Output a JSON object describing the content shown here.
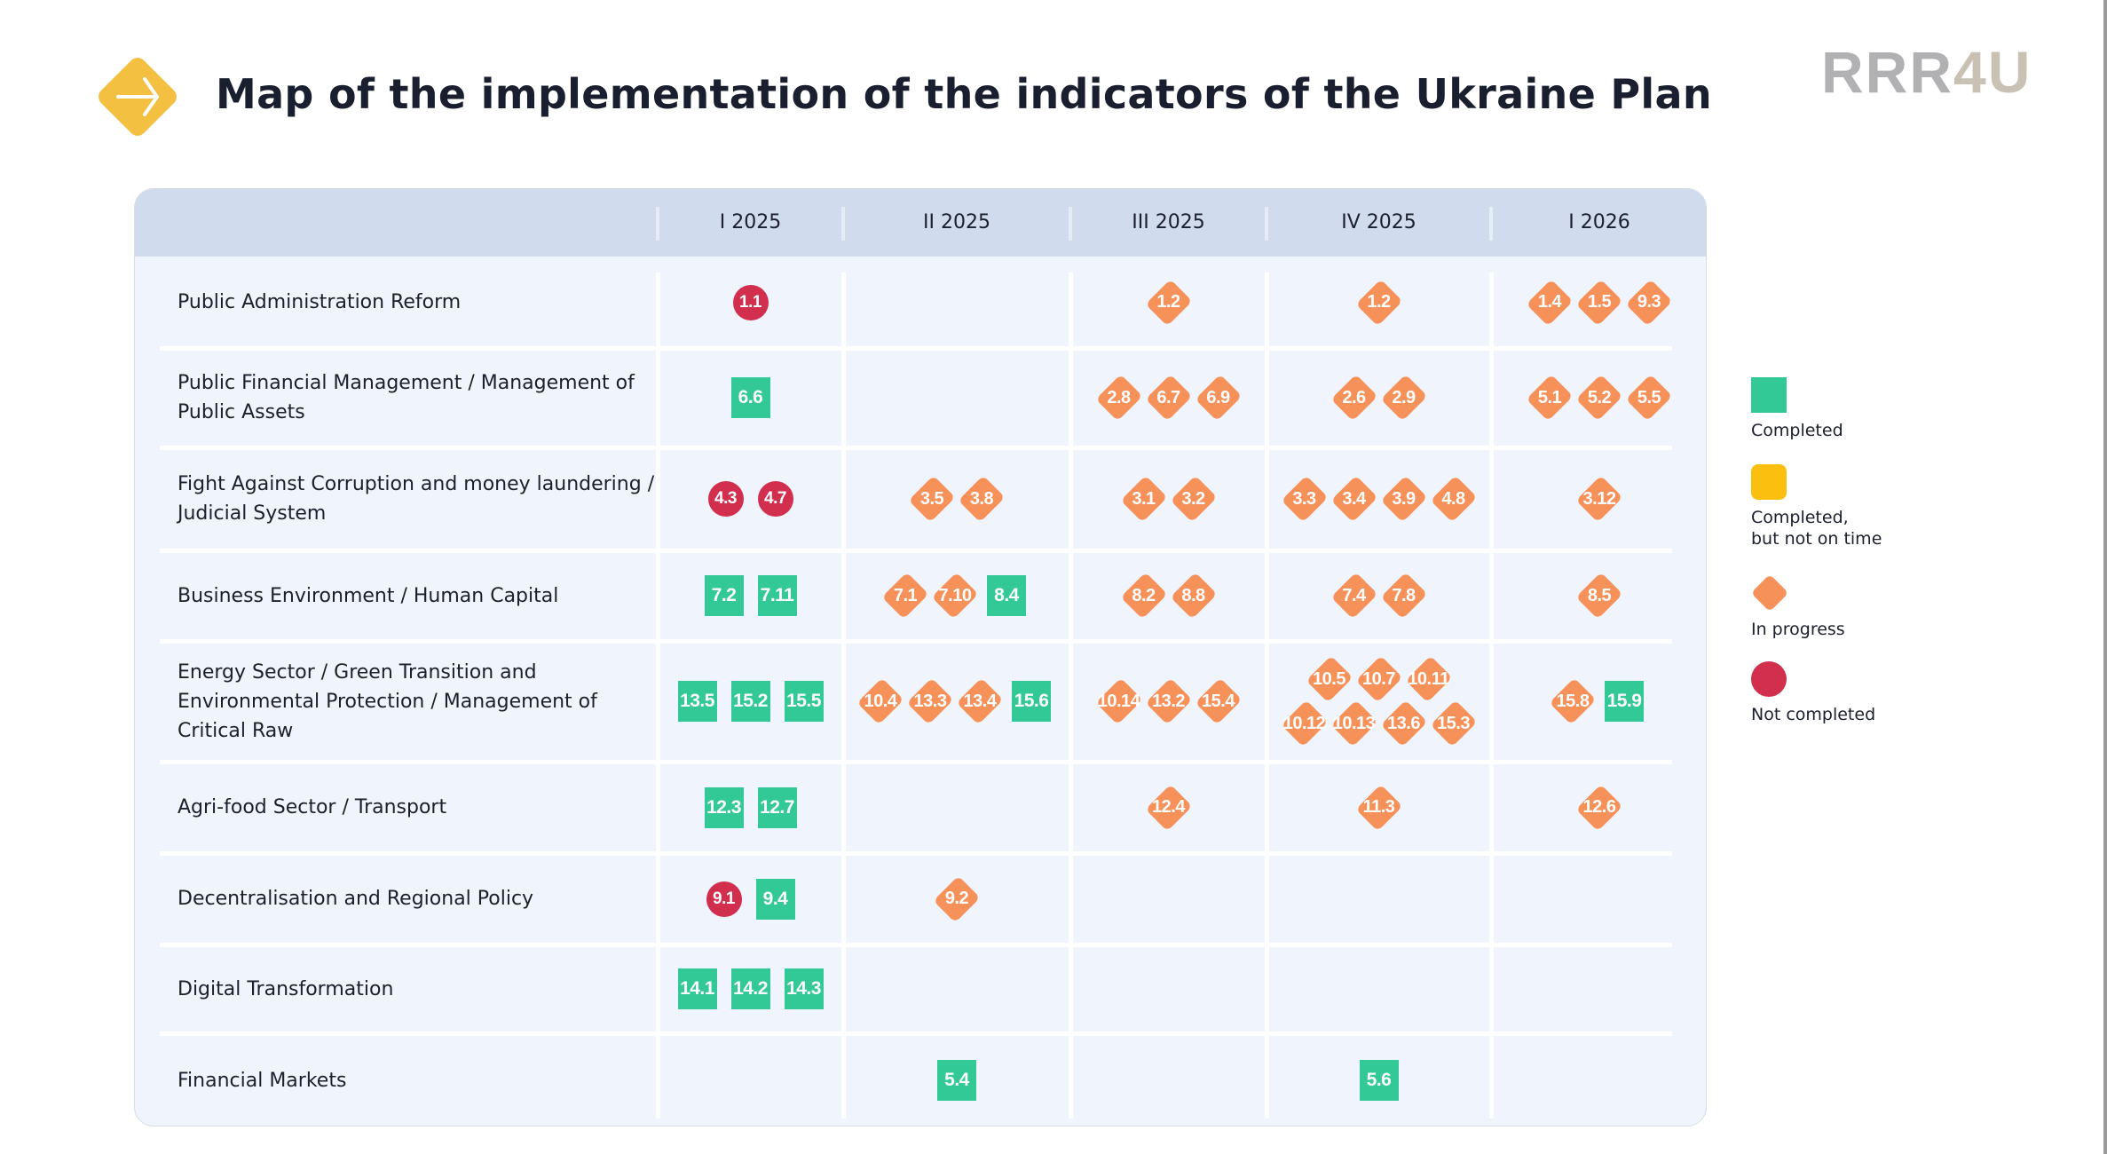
{
  "header": {
    "title": "Map of the implementation of the indicators of the Ukraine Plan",
    "logo_text_a": "RRR",
    "logo_text_b": "4U",
    "icon": "arrow-right-diamond-icon"
  },
  "colors": {
    "completed": "#33c997",
    "completed_late": "#fbbf0f",
    "in_progress": "#f7915a",
    "not_completed": "#d22e4e",
    "title_icon": "#f4c042",
    "header_bg": "#d0dcee",
    "table_bg": "#f0f5fd"
  },
  "legend": {
    "items": [
      {
        "status": "completed",
        "label": "Completed"
      },
      {
        "status": "late",
        "label": "Completed,\nbut not on time"
      },
      {
        "status": "inprogress",
        "label": "In progress"
      },
      {
        "status": "notcompleted",
        "label": "Not completed"
      }
    ]
  },
  "chart_data": {
    "type": "table",
    "title": "Map of the implementation of the indicators of the Ukraine Plan",
    "columns": [
      "I 2025",
      "II 2025",
      "III 2025",
      "IV 2025",
      "I 2026"
    ],
    "legend_placement": "right",
    "rows": [
      {
        "label": "Public Administration Reform",
        "cells": [
          [
            {
              "id": "1.1",
              "status": "notcompleted"
            }
          ],
          [],
          [
            {
              "id": "1.2",
              "status": "inprogress"
            }
          ],
          [
            {
              "id": "1.2",
              "status": "inprogress"
            }
          ],
          [
            {
              "id": "1.4",
              "status": "inprogress"
            },
            {
              "id": "1.5",
              "status": "inprogress"
            },
            {
              "id": "9.3",
              "status": "inprogress"
            }
          ]
        ]
      },
      {
        "label": "Public Financial Management / Management of Public Assets",
        "cells": [
          [
            {
              "id": "6.6",
              "status": "completed"
            }
          ],
          [],
          [
            {
              "id": "2.8",
              "status": "inprogress"
            },
            {
              "id": "6.7",
              "status": "inprogress"
            },
            {
              "id": "6.9",
              "status": "inprogress"
            }
          ],
          [
            {
              "id": "2.6",
              "status": "inprogress"
            },
            {
              "id": "2.9",
              "status": "inprogress"
            }
          ],
          [
            {
              "id": "5.1",
              "status": "inprogress"
            },
            {
              "id": "5.2",
              "status": "inprogress"
            },
            {
              "id": "5.5",
              "status": "inprogress"
            }
          ]
        ]
      },
      {
        "label": "Fight Against Corruption and money laundering / Judicial System",
        "cells": [
          [
            {
              "id": "4.3",
              "status": "notcompleted"
            },
            {
              "id": "4.7",
              "status": "notcompleted"
            }
          ],
          [
            {
              "id": "3.5",
              "status": "inprogress"
            },
            {
              "id": "3.8",
              "status": "inprogress"
            }
          ],
          [
            {
              "id": "3.1",
              "status": "inprogress"
            },
            {
              "id": "3.2",
              "status": "inprogress"
            }
          ],
          [
            {
              "id": "3.3",
              "status": "inprogress"
            },
            {
              "id": "3.4",
              "status": "inprogress"
            },
            {
              "id": "3.9",
              "status": "inprogress"
            },
            {
              "id": "4.8",
              "status": "inprogress"
            }
          ],
          [
            {
              "id": "3.12",
              "status": "inprogress"
            }
          ]
        ]
      },
      {
        "label": "Business Environment / Human Capital",
        "cells": [
          [
            {
              "id": "7.2",
              "status": "completed"
            },
            {
              "id": "7.11",
              "status": "completed"
            }
          ],
          [
            {
              "id": "7.1",
              "status": "inprogress"
            },
            {
              "id": "7.10",
              "status": "inprogress"
            },
            {
              "id": "8.4",
              "status": "completed"
            }
          ],
          [
            {
              "id": "8.2",
              "status": "inprogress"
            },
            {
              "id": "8.8",
              "status": "inprogress"
            }
          ],
          [
            {
              "id": "7.4",
              "status": "inprogress"
            },
            {
              "id": "7.8",
              "status": "inprogress"
            }
          ],
          [
            {
              "id": "8.5",
              "status": "inprogress"
            }
          ]
        ]
      },
      {
        "label": "Energy Sector / Green Transition and Environmental Protection / Management of Critical Raw",
        "cells": [
          [
            {
              "id": "13.5",
              "status": "completed"
            },
            {
              "id": "15.2",
              "status": "completed"
            },
            {
              "id": "15.5",
              "status": "completed"
            }
          ],
          [
            {
              "id": "10.4",
              "status": "inprogress"
            },
            {
              "id": "13.3",
              "status": "inprogress"
            },
            {
              "id": "13.4",
              "status": "inprogress"
            },
            {
              "id": "15.6",
              "status": "completed"
            }
          ],
          [
            {
              "id": "10.14",
              "status": "inprogress"
            },
            {
              "id": "13.2",
              "status": "inprogress"
            },
            {
              "id": "15.4",
              "status": "inprogress"
            }
          ],
          [
            {
              "id": "10.5",
              "status": "inprogress"
            },
            {
              "id": "10.7",
              "status": "inprogress"
            },
            {
              "id": "10.11",
              "status": "inprogress"
            },
            {
              "id": "10.12",
              "status": "inprogress"
            },
            {
              "id": "10.13",
              "status": "inprogress"
            },
            {
              "id": "13.6",
              "status": "inprogress"
            },
            {
              "id": "15.3",
              "status": "inprogress"
            }
          ],
          [
            {
              "id": "15.8",
              "status": "inprogress"
            },
            {
              "id": "15.9",
              "status": "completed"
            }
          ]
        ]
      },
      {
        "label": "Agri-food Sector / Transport",
        "cells": [
          [
            {
              "id": "12.3",
              "status": "completed"
            },
            {
              "id": "12.7",
              "status": "completed"
            }
          ],
          [],
          [
            {
              "id": "12.4",
              "status": "inprogress"
            }
          ],
          [
            {
              "id": "11.3",
              "status": "inprogress"
            }
          ],
          [
            {
              "id": "12.6",
              "status": "inprogress"
            }
          ]
        ]
      },
      {
        "label": "Decentralisation and Regional Policy",
        "cells": [
          [
            {
              "id": "9.1",
              "status": "notcompleted"
            },
            {
              "id": "9.4",
              "status": "completed"
            }
          ],
          [
            {
              "id": "9.2",
              "status": "inprogress"
            }
          ],
          [],
          [],
          []
        ]
      },
      {
        "label": "Digital Transformation",
        "cells": [
          [
            {
              "id": "14.1",
              "status": "completed"
            },
            {
              "id": "14.2",
              "status": "completed"
            },
            {
              "id": "14.3",
              "status": "completed"
            }
          ],
          [],
          [],
          [],
          []
        ]
      },
      {
        "label": "Financial Markets",
        "cells": [
          [],
          [
            {
              "id": "5.4",
              "status": "completed"
            }
          ],
          [],
          [
            {
              "id": "5.6",
              "status": "completed"
            }
          ],
          []
        ]
      }
    ]
  }
}
